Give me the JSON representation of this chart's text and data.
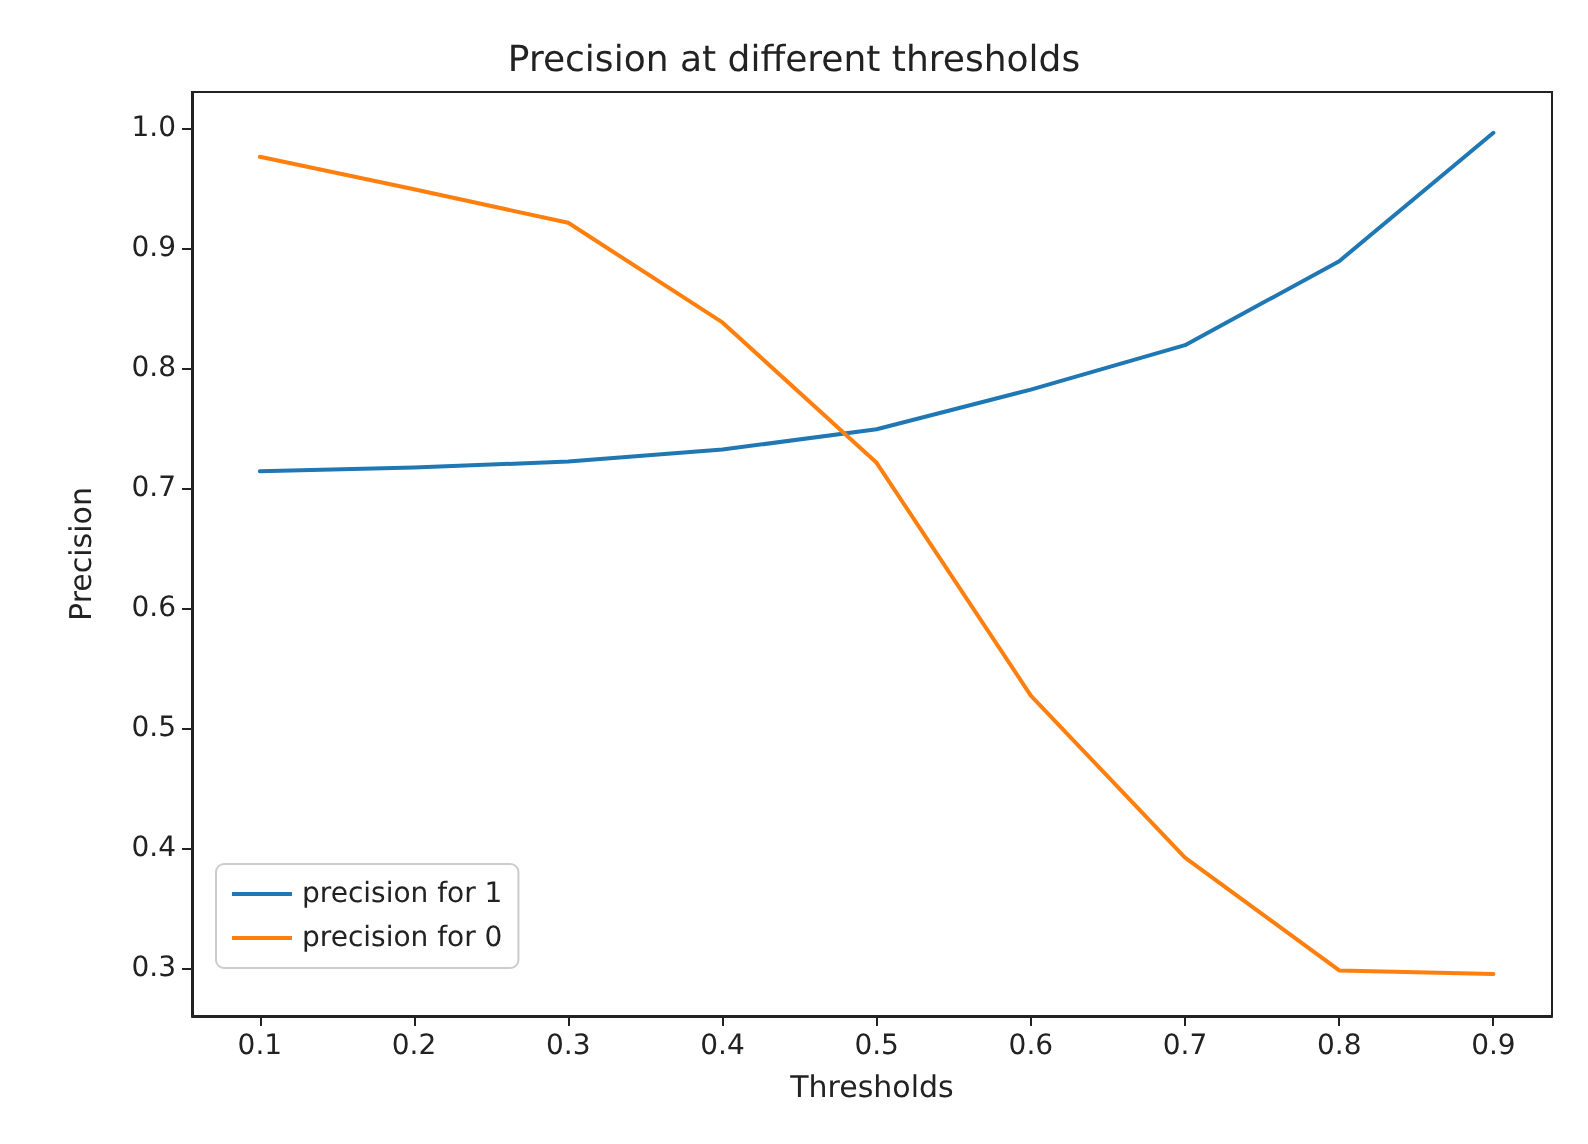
{
  "chart_data": {
    "type": "line",
    "title": "Precision at different thresholds",
    "xlabel": "Thresholds",
    "ylabel": "Precision",
    "x": [
      0.1,
      0.2,
      0.3,
      0.4,
      0.5,
      0.6,
      0.7,
      0.8,
      0.9
    ],
    "series": [
      {
        "name": "precision for 1",
        "color": "#1f77b4",
        "values": [
          0.714,
          0.717,
          0.722,
          0.732,
          0.749,
          0.782,
          0.819,
          0.889,
          0.996
        ]
      },
      {
        "name": "precision for 0",
        "color": "#ff7f0e",
        "values": [
          0.976,
          0.949,
          0.921,
          0.838,
          0.721,
          0.527,
          0.392,
          0.298,
          0.295
        ]
      }
    ],
    "xlim": [
      0.056,
      0.938
    ],
    "ylim": [
      0.26,
      1.03
    ],
    "xticks": [
      0.1,
      0.2,
      0.3,
      0.4,
      0.5,
      0.6,
      0.7,
      0.8,
      0.9
    ],
    "yticks": [
      0.3,
      0.4,
      0.5,
      0.6,
      0.7,
      0.8,
      0.9,
      {
        "value": 1,
        "label": "1.0"
      }
    ],
    "legend": "bottom left",
    "grid": false,
    "marker": "none",
    "line_style": "solid"
  }
}
